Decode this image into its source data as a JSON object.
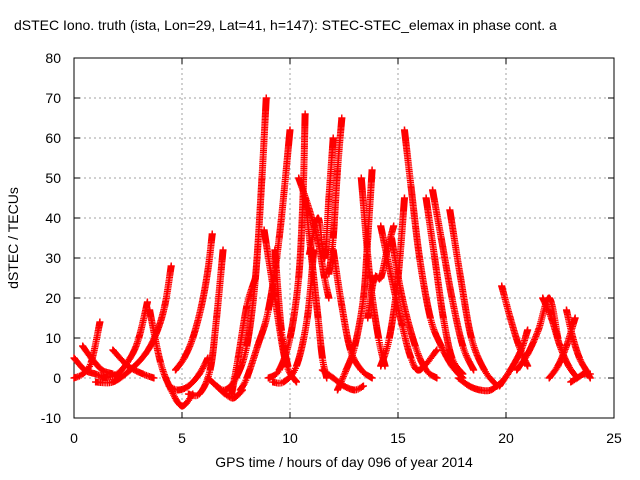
{
  "chart_data": {
    "type": "scatter",
    "title": "dSTEC Iono. truth (ista, Lon=29, Lat=41, h=147): STEC-STEC_elemax in phase cont. a",
    "xlabel": "GPS time / hours of day 096 of year 2014",
    "ylabel": "dSTEC  / TECUs",
    "xlim": [
      0,
      25
    ],
    "ylim": [
      -10,
      80
    ],
    "xticks": [
      0,
      5,
      10,
      15,
      20,
      25
    ],
    "yticks": [
      -10,
      0,
      10,
      20,
      30,
      40,
      50,
      60,
      70,
      80
    ],
    "grid": true,
    "marker": "+",
    "color": "#ff0000",
    "arcs": [
      {
        "x": [
          0.0,
          0.5,
          1.0,
          1.5
        ],
        "y": [
          5,
          2,
          1,
          0
        ]
      },
      {
        "x": [
          0.0,
          0.4,
          0.8,
          1.2
        ],
        "y": [
          0,
          1,
          4,
          14
        ]
      },
      {
        "x": [
          0.4,
          0.8,
          1.3,
          1.8,
          2.1
        ],
        "y": [
          8,
          5,
          2,
          1,
          0
        ]
      },
      {
        "x": [
          1.3,
          2.0,
          2.6,
          3.0,
          3.4
        ],
        "y": [
          0,
          1,
          5,
          10,
          19
        ]
      },
      {
        "x": [
          1.0,
          1.8,
          2.6,
          3.3,
          3.8,
          4.2,
          4.5
        ],
        "y": [
          -1,
          -1,
          2,
          6,
          11,
          18,
          28
        ]
      },
      {
        "x": [
          1.8,
          2.5,
          3.2,
          3.7
        ],
        "y": [
          7,
          3,
          1,
          0
        ]
      },
      {
        "x": [
          3.5,
          4.0,
          4.5,
          5.0,
          5.5
        ],
        "y": [
          17,
          4,
          -3,
          -7,
          -4
        ]
      },
      {
        "x": [
          4.4,
          4.8,
          5.3,
          5.8,
          6.2
        ],
        "y": [
          -2,
          -3,
          -2,
          1,
          5
        ]
      },
      {
        "x": [
          4.7,
          5.1,
          5.5,
          5.9,
          6.2,
          6.4
        ],
        "y": [
          2,
          5,
          10,
          18,
          27,
          36
        ]
      },
      {
        "x": [
          5.3,
          5.8,
          6.3,
          6.6,
          6.9
        ],
        "y": [
          -4,
          -4,
          2,
          15,
          32
        ]
      },
      {
        "x": [
          6.2,
          6.6,
          7.0,
          7.4,
          7.8
        ],
        "y": [
          0,
          -2,
          -4,
          -5,
          -3
        ]
      },
      {
        "x": [
          6.6,
          7.0,
          7.5,
          8.0,
          8.4,
          8.7,
          8.9
        ],
        "y": [
          -2,
          -3,
          0,
          8,
          25,
          50,
          70
        ]
      },
      {
        "x": [
          7.3,
          7.6,
          8.0,
          8.4
        ],
        "y": [
          -4,
          5,
          18,
          25
        ]
      },
      {
        "x": [
          7.7,
          8.0,
          8.5,
          9.0,
          9.5,
          10.0
        ],
        "y": [
          -3,
          0,
          8,
          17,
          35,
          62
        ]
      },
      {
        "x": [
          8.8,
          9.3,
          9.8,
          10.3
        ],
        "y": [
          37,
          20,
          4,
          -1
        ]
      },
      {
        "x": [
          9.3,
          9.6,
          9.9
        ],
        "y": [
          32,
          12,
          3
        ]
      },
      {
        "x": [
          9.0,
          9.5,
          10.0,
          10.4,
          10.6,
          10.7
        ],
        "y": [
          0,
          2,
          10,
          25,
          45,
          66
        ]
      },
      {
        "x": [
          9.2,
          9.7,
          10.3,
          10.8,
          11.1
        ],
        "y": [
          -1,
          -1,
          3,
          15,
          32
        ]
      },
      {
        "x": [
          10.7,
          11.0,
          11.3,
          11.5,
          11.7
        ],
        "y": [
          45,
          30,
          15,
          5,
          0
        ]
      },
      {
        "x": [
          10.9,
          11.3,
          11.6,
          11.8,
          12.0
        ],
        "y": [
          31,
          40,
          30,
          45,
          60
        ]
      },
      {
        "x": [
          10.4,
          10.9,
          11.3,
          11.6,
          11.8
        ],
        "y": [
          50,
          42,
          34,
          25,
          20
        ]
      },
      {
        "x": [
          11.5,
          12.0,
          12.5,
          13.0,
          13.4
        ],
        "y": [
          2,
          0,
          -2,
          -3,
          -2
        ]
      },
      {
        "x": [
          11.8,
          12.0,
          12.2,
          12.4
        ],
        "y": [
          26,
          35,
          52,
          65
        ]
      },
      {
        "x": [
          12.0,
          12.4,
          12.8,
          13.3,
          13.8
        ],
        "y": [
          32,
          18,
          7,
          2,
          0
        ]
      },
      {
        "x": [
          12.2,
          12.6,
          13.0,
          13.4,
          13.6,
          13.8
        ],
        "y": [
          -3,
          2,
          8,
          20,
          35,
          52
        ]
      },
      {
        "x": [
          13.3,
          13.7,
          14.1,
          14.4
        ],
        "y": [
          50,
          25,
          10,
          3
        ]
      },
      {
        "x": [
          13.6,
          13.9,
          14.2,
          14.5,
          14.8
        ],
        "y": [
          15,
          25,
          25,
          32,
          38
        ]
      },
      {
        "x": [
          14.2,
          14.7,
          15.2,
          15.6,
          16.0,
          16.8
        ],
        "y": [
          38,
          25,
          13,
          5,
          2,
          7
        ]
      },
      {
        "x": [
          14.2,
          14.6,
          15.0,
          15.3
        ],
        "y": [
          3,
          10,
          25,
          45
        ]
      },
      {
        "x": [
          15.3,
          15.6,
          16.0,
          16.5,
          17.0,
          17.5,
          18.0
        ],
        "y": [
          62,
          48,
          30,
          15,
          8,
          3,
          0
        ]
      },
      {
        "x": [
          14.7,
          15.2,
          15.8,
          16.3,
          16.8
        ],
        "y": [
          35,
          20,
          8,
          2,
          0
        ]
      },
      {
        "x": [
          16.3,
          16.7,
          17.1,
          17.5,
          18.0
        ],
        "y": [
          45,
          30,
          15,
          5,
          1
        ]
      },
      {
        "x": [
          16.6,
          17.0,
          17.5,
          18.0,
          18.5
        ],
        "y": [
          47,
          35,
          20,
          8,
          2
        ]
      },
      {
        "x": [
          17.4,
          17.9,
          18.4,
          19.0,
          19.6
        ],
        "y": [
          42,
          25,
          10,
          2,
          -2
        ]
      },
      {
        "x": [
          17.8,
          18.3,
          18.8,
          19.3,
          19.8
        ],
        "y": [
          0,
          -2,
          -3,
          -3,
          -1
        ]
      },
      {
        "x": [
          19.8,
          20.2,
          20.6,
          21.0
        ],
        "y": [
          23,
          15,
          8,
          3
        ]
      },
      {
        "x": [
          19.7,
          20.2,
          20.7,
          21.0
        ],
        "y": [
          -2,
          2,
          7,
          12
        ]
      },
      {
        "x": [
          20.5,
          21.0,
          21.5,
          22.0,
          22.4
        ],
        "y": [
          2,
          6,
          12,
          20,
          10
        ]
      },
      {
        "x": [
          21.7,
          22.1,
          22.5,
          22.9,
          23.3
        ],
        "y": [
          20,
          15,
          8,
          3,
          0
        ]
      },
      {
        "x": [
          22.0,
          22.4,
          22.8,
          23.2
        ],
        "y": [
          0,
          3,
          8,
          15
        ]
      },
      {
        "x": [
          22.8,
          23.1,
          23.4,
          23.7,
          23.9
        ],
        "y": [
          17,
          10,
          5,
          2,
          0
        ]
      },
      {
        "x": [
          23.0,
          23.3,
          23.6,
          23.9
        ],
        "y": [
          -1,
          0,
          1,
          1
        ]
      }
    ]
  }
}
